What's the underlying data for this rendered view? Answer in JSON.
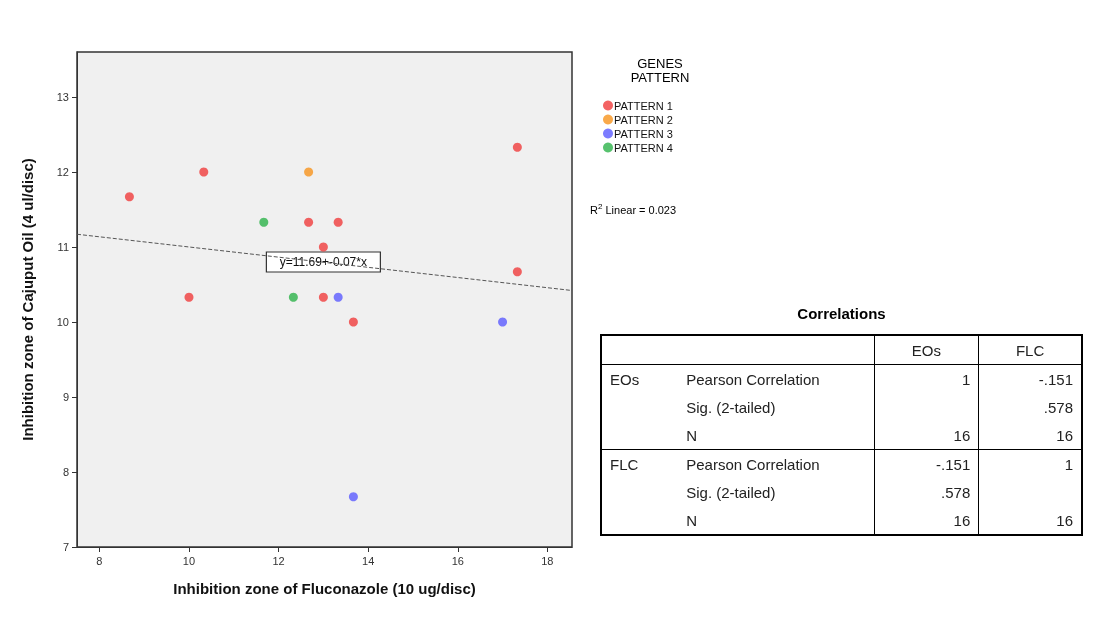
{
  "chart_data": [
    {
      "type": "scatter",
      "xlabel": "Inhibition zone of Fluconazole (10 ug/disc)",
      "ylabel": "Inhibition zone of Cajuput Oil (4 ul/disc)",
      "legend_title": "GENES PATTERN",
      "legend": "top right",
      "marker": "circle",
      "grid": false,
      "xlim": [
        7.5,
        18.55
      ],
      "ylim": [
        7,
        13.6
      ],
      "xticks": [
        8,
        10,
        12,
        14,
        16,
        18
      ],
      "yticks": [
        7,
        8,
        9,
        10,
        11,
        12,
        13
      ],
      "series": [
        {
          "name": "PATTERN 1",
          "color": "#f03c3c",
          "x": [
            8.67,
            10.33,
            10.0,
            12.67,
            13.33,
            13.0,
            13.0,
            13.67,
            17.33,
            17.33
          ],
          "values": [
            11.67,
            12.0,
            10.33,
            11.33,
            11.33,
            11.0,
            10.33,
            10.0,
            12.33,
            10.67
          ]
        },
        {
          "name": "PATTERN 2",
          "color": "#f7941d",
          "x": [
            12.67
          ],
          "values": [
            12.0
          ]
        },
        {
          "name": "PATTERN 3",
          "color": "#5b5bff",
          "x": [
            13.33,
            13.67,
            17.0
          ],
          "values": [
            10.33,
            7.67,
            10.0
          ]
        },
        {
          "name": "PATTERN 4",
          "color": "#2db34a",
          "x": [
            11.67,
            12.33
          ],
          "values": [
            11.33,
            10.33
          ]
        },
        {
          "type": "line",
          "color": "#555555",
          "line_style": "dashed",
          "marker": "none",
          "x": [
            7.5,
            18.55
          ],
          "values": [
            11.17,
            10.42
          ]
        }
      ],
      "annotations": [
        {
          "text": "y=11.69+-0.07*x",
          "x": 13,
          "y": 10.8
        },
        "R$^{2}$ Linear = 0.023"
      ]
    },
    {
      "type": "other",
      "title": "Correlations",
      "cell_labels": [
        [
          null,
          null,
          "EOs",
          "FLC"
        ],
        [
          "EOs",
          "Pearson Correlation",
          "1",
          "-.151"
        ],
        [
          null,
          "Sig. (2-tailed)",
          null,
          ".578"
        ],
        [
          null,
          "N",
          "16",
          "16"
        ],
        [
          "FLC",
          "Pearson Correlation",
          "-.151",
          "1"
        ],
        [
          null,
          "Sig. (2-tailed)",
          ".578",
          null
        ],
        [
          null,
          "N",
          "16",
          "16"
        ]
      ]
    }
  ]
}
